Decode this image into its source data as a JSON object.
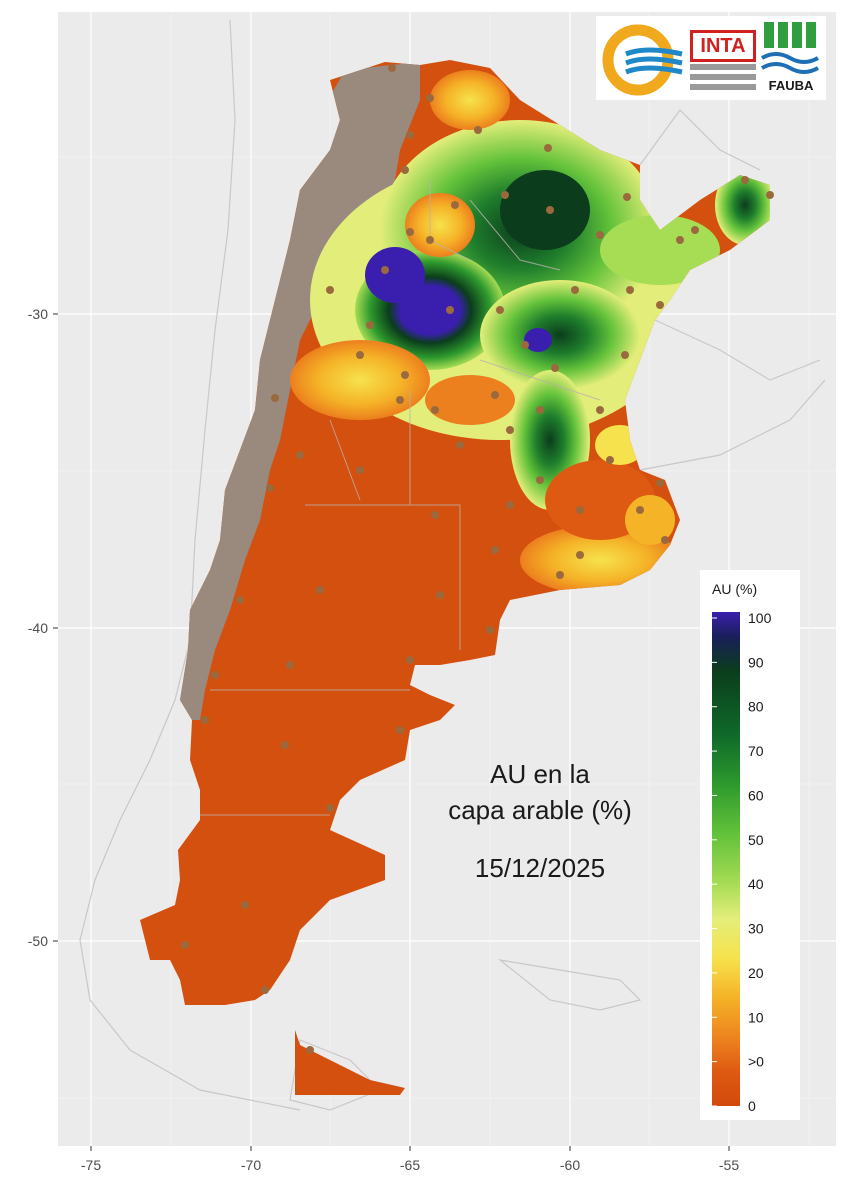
{
  "map": {
    "annotation": {
      "line1": "AU en la",
      "line2": "capa arable (%)",
      "date": "15/12/2025"
    },
    "x_ticks": [
      "-75",
      "-70",
      "-65",
      "-60",
      "-55"
    ],
    "y_ticks": [
      "-30",
      "-40",
      "-50"
    ],
    "legend": {
      "title": "AU (%)",
      "labels": [
        "100",
        "90",
        "80",
        "70",
        "60",
        "50",
        "40",
        "30",
        "20",
        "10",
        ">0",
        "0"
      ],
      "colors": [
        "#3a1fae",
        "#0b3d1c",
        "#0f6a2a",
        "#2e9a2d",
        "#63c23a",
        "#a7dc55",
        "#e3ee7a",
        "#f6e24d",
        "#f5b327",
        "#ec7f1e",
        "#de5a12",
        "#d24a0c"
      ]
    },
    "logos": {
      "inta_text": "INTA",
      "fauba_text": "FAUBA"
    },
    "colors": {
      "background": "#ebebeb",
      "dry": "#d4500f",
      "no_data": "#9a8a7e",
      "gridline": "#ffffff"
    }
  }
}
